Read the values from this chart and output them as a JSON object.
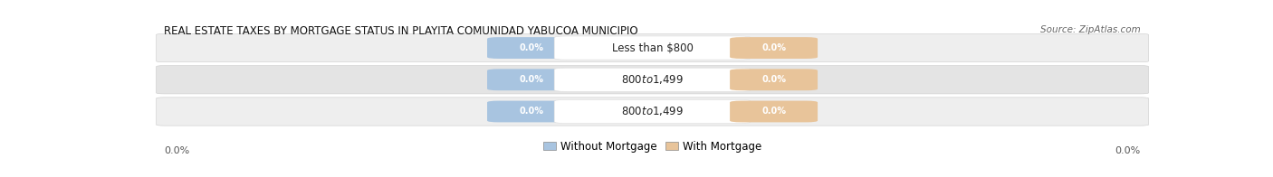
{
  "title": "Real Estate Taxes by Mortgage Status in Playita comunidad Yabucoa Municipio",
  "title_display": "REAL ESTATE TAXES BY MORTGAGE STATUS IN PLAYITA COMUNIDAD YABUCOA MUNICIPIO",
  "source": "Source: ZipAtlas.com",
  "categories": [
    "Less than $800",
    "$800 to $1,499",
    "$800 to $1,499"
  ],
  "without_mortgage_values": [
    "0.0%",
    "0.0%",
    "0.0%"
  ],
  "with_mortgage_values": [
    "0.0%",
    "0.0%",
    "0.0%"
  ],
  "without_mortgage_color": "#a8c4e0",
  "with_mortgage_color": "#e8c49a",
  "row_bg_colors": [
    "#eeeeee",
    "#e4e4e4",
    "#eeeeee"
  ],
  "row_border_color": "#cccccc",
  "white_label_color": "#ffffff",
  "white_label_border": "#dddddd",
  "left_label": "0.0%",
  "right_label": "0.0%",
  "legend_without": "Without Mortgage",
  "legend_with": "With Mortgage",
  "title_fontsize": 8.5,
  "source_fontsize": 7.5,
  "label_fontsize": 8,
  "cat_fontsize": 8.5,
  "pill_fontsize": 7,
  "legend_fontsize": 8.5,
  "figsize": [
    14.06,
    1.96
  ],
  "dpi": 100
}
